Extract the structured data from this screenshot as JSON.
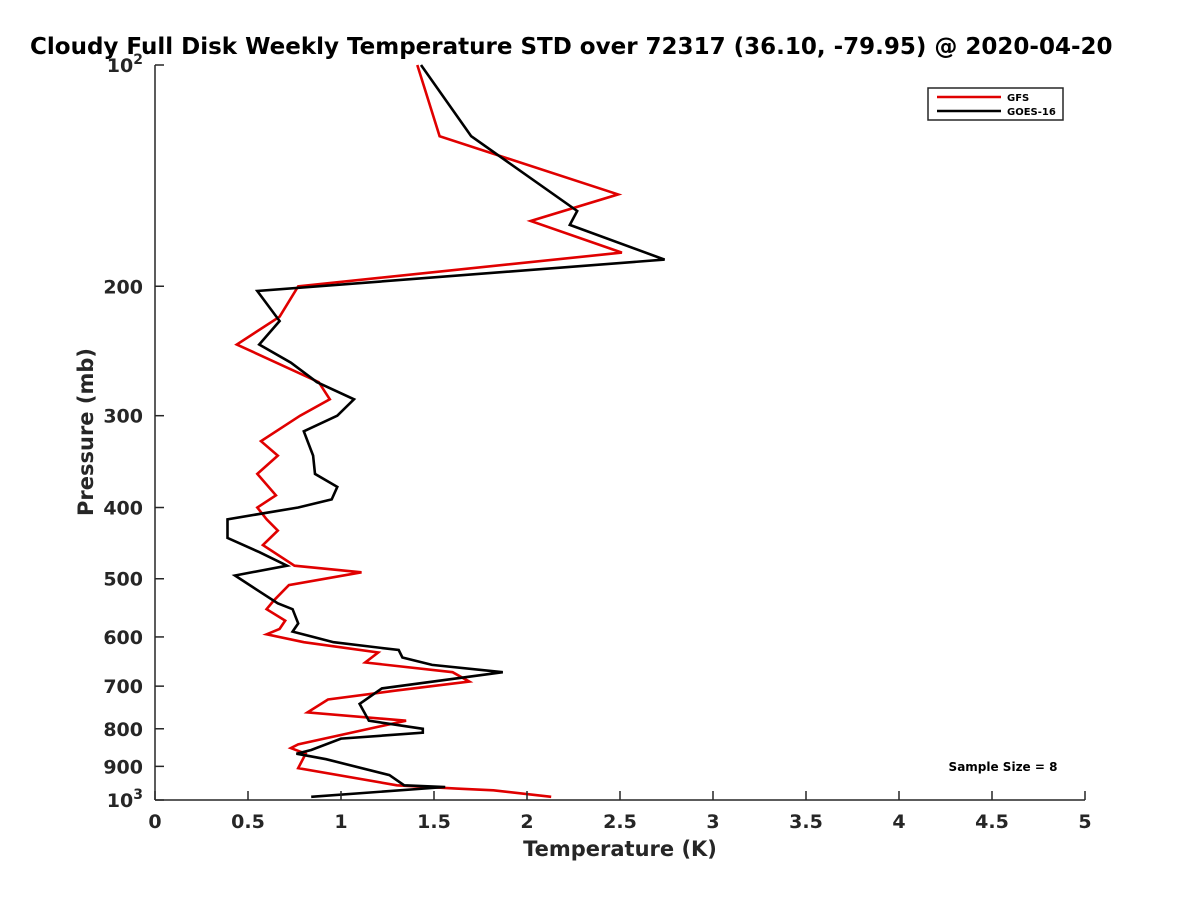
{
  "chart_data": {
    "type": "line",
    "title": "Cloudy Full Disk Weekly Temperature STD over 72317 (36.10, -79.95) @ 2020-04-20",
    "xlabel": "Temperature (K)",
    "ylabel": "Pressure (mb)",
    "xlim": [
      0,
      5
    ],
    "ylim": [
      100,
      1000
    ],
    "y_scale": "log",
    "y_reversed": true,
    "x_ticks": [
      "0",
      "0.5",
      "1",
      "1.5",
      "2",
      "2.5",
      "3",
      "3.5",
      "4",
      "4.5",
      "5"
    ],
    "y_ticks": [
      {
        "value": 100,
        "label": "10",
        "exp": "2"
      },
      {
        "value": 200,
        "label": "200"
      },
      {
        "value": 300,
        "label": "300"
      },
      {
        "value": 400,
        "label": "400"
      },
      {
        "value": 500,
        "label": "500"
      },
      {
        "value": 600,
        "label": "600"
      },
      {
        "value": 700,
        "label": "700"
      },
      {
        "value": 800,
        "label": "800"
      },
      {
        "value": 900,
        "label": "900"
      },
      {
        "value": 1000,
        "label": "10",
        "exp": "3"
      }
    ],
    "legend_position": "top-right",
    "grid": false,
    "annotation": "Sample Size = 8",
    "series": [
      {
        "name": "GFS",
        "color": "#e00000",
        "points": [
          [
            1.41,
            100
          ],
          [
            1.53,
            125
          ],
          [
            2.49,
            150
          ],
          [
            2.02,
            163
          ],
          [
            2.51,
            180
          ],
          [
            0.77,
            200
          ],
          [
            0.67,
            220
          ],
          [
            0.44,
            240
          ],
          [
            0.88,
            270
          ],
          [
            0.94,
            285
          ],
          [
            0.78,
            300
          ],
          [
            0.57,
            325
          ],
          [
            0.66,
            340
          ],
          [
            0.55,
            360
          ],
          [
            0.65,
            385
          ],
          [
            0.55,
            400
          ],
          [
            0.6,
            415
          ],
          [
            0.66,
            430
          ],
          [
            0.58,
            450
          ],
          [
            0.75,
            480
          ],
          [
            1.11,
            490
          ],
          [
            0.72,
            510
          ],
          [
            0.64,
            535
          ],
          [
            0.6,
            550
          ],
          [
            0.7,
            570
          ],
          [
            0.67,
            585
          ],
          [
            0.6,
            595
          ],
          [
            0.8,
            610
          ],
          [
            1.2,
            630
          ],
          [
            1.13,
            650
          ],
          [
            1.6,
            670
          ],
          [
            1.69,
            690
          ],
          [
            1.29,
            710
          ],
          [
            0.93,
            730
          ],
          [
            0.82,
            760
          ],
          [
            1.35,
            780
          ],
          [
            0.77,
            840
          ],
          [
            0.73,
            850
          ],
          [
            0.81,
            865
          ],
          [
            0.77,
            905
          ],
          [
            1.3,
            955
          ],
          [
            1.62,
            965
          ],
          [
            1.82,
            970
          ],
          [
            2.13,
            990
          ]
        ]
      },
      {
        "name": "GOES-16",
        "color": "#000000",
        "points": [
          [
            1.43,
            100
          ],
          [
            1.7,
            125
          ],
          [
            2.27,
            158
          ],
          [
            2.23,
            165
          ],
          [
            2.74,
            184
          ],
          [
            0.55,
            203
          ],
          [
            0.67,
            223
          ],
          [
            0.56,
            240
          ],
          [
            0.73,
            254
          ],
          [
            0.87,
            270
          ],
          [
            1.07,
            285
          ],
          [
            0.98,
            300
          ],
          [
            0.8,
            315
          ],
          [
            0.85,
            340
          ],
          [
            0.86,
            360
          ],
          [
            0.98,
            375
          ],
          [
            0.95,
            390
          ],
          [
            0.77,
            400
          ],
          [
            0.39,
            415
          ],
          [
            0.39,
            440
          ],
          [
            0.56,
            460
          ],
          [
            0.71,
            480
          ],
          [
            0.43,
            495
          ],
          [
            0.56,
            520
          ],
          [
            0.66,
            540
          ],
          [
            0.74,
            550
          ],
          [
            0.77,
            575
          ],
          [
            0.74,
            590
          ],
          [
            0.96,
            610
          ],
          [
            1.31,
            625
          ],
          [
            1.33,
            640
          ],
          [
            1.49,
            655
          ],
          [
            1.87,
            670
          ],
          [
            1.22,
            705
          ],
          [
            1.1,
            740
          ],
          [
            1.15,
            780
          ],
          [
            1.44,
            800
          ],
          [
            1.44,
            810
          ],
          [
            1.0,
            825
          ],
          [
            0.84,
            855
          ],
          [
            0.76,
            865
          ],
          [
            0.92,
            880
          ],
          [
            1.26,
            925
          ],
          [
            1.34,
            955
          ],
          [
            1.56,
            960
          ],
          [
            0.84,
            990
          ]
        ]
      }
    ]
  }
}
